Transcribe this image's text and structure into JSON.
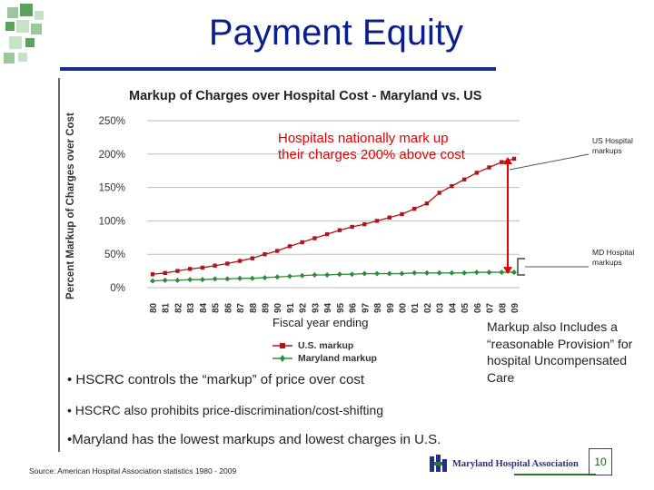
{
  "slide": {
    "title": "Payment Equity",
    "page_number": "10",
    "source": "Source: American Hospital Association statistics 1980 - 2009"
  },
  "callouts": {
    "hospitals_note": "Hospitals nationally mark up their charges 200% above cost",
    "us_note": "US Hospital markups",
    "md_note": "MD Hospital markups",
    "markup_note": "Markup also Includes a “reasonable Provision” for hospital Uncompensated Care"
  },
  "bullets": {
    "b1": "• HSCRC controls the “markup” of price over cost",
    "b2_prefix": "• HSCRC also p",
    "b2_rest": "rohibits price-discrimination/cost-shifting",
    "b3": "•Maryland has the lowest markups and lowest charges in U.S."
  },
  "logo": {
    "text": "Maryland Hospital Association"
  },
  "colors": {
    "title_blue": "#0b1f8c",
    "us_series": "#b0151a",
    "md_series": "#2e8b3a",
    "callout_red": "#e00000",
    "accent_green": "#2b7a2b"
  },
  "chart_data": {
    "type": "line",
    "title": "Markup of Charges over Hospital Cost - Maryland vs. US",
    "xlabel": "Fiscal year ending",
    "ylabel": "Percent Markup of Charges over Cost",
    "categories": [
      "80",
      "81",
      "82",
      "83",
      "84",
      "85",
      "86",
      "87",
      "88",
      "89",
      "90",
      "91",
      "92",
      "93",
      "94",
      "95",
      "96",
      "97",
      "98",
      "99",
      "00",
      "01",
      "02",
      "03",
      "04",
      "05",
      "06",
      "07",
      "08",
      "09"
    ],
    "yticks": [
      "0%",
      "50%",
      "100%",
      "150%",
      "200%",
      "250%"
    ],
    "ylim": [
      0,
      250
    ],
    "grid": true,
    "legend_position": "bottom",
    "series": [
      {
        "name": "U.S. markup",
        "color": "#b0151a",
        "values": [
          20,
          22,
          25,
          28,
          30,
          33,
          36,
          40,
          44,
          50,
          55,
          62,
          68,
          74,
          80,
          86,
          91,
          95,
          100,
          105,
          110,
          118,
          126,
          142,
          152,
          162,
          172,
          180,
          188,
          193
        ]
      },
      {
        "name": "Maryland markup",
        "color": "#2e8b3a",
        "values": [
          10,
          11,
          11,
          12,
          12,
          13,
          13,
          14,
          14,
          15,
          16,
          17,
          18,
          19,
          19,
          20,
          20,
          21,
          21,
          21,
          21,
          22,
          22,
          22,
          22,
          22,
          23,
          23,
          23,
          23
        ]
      }
    ]
  }
}
